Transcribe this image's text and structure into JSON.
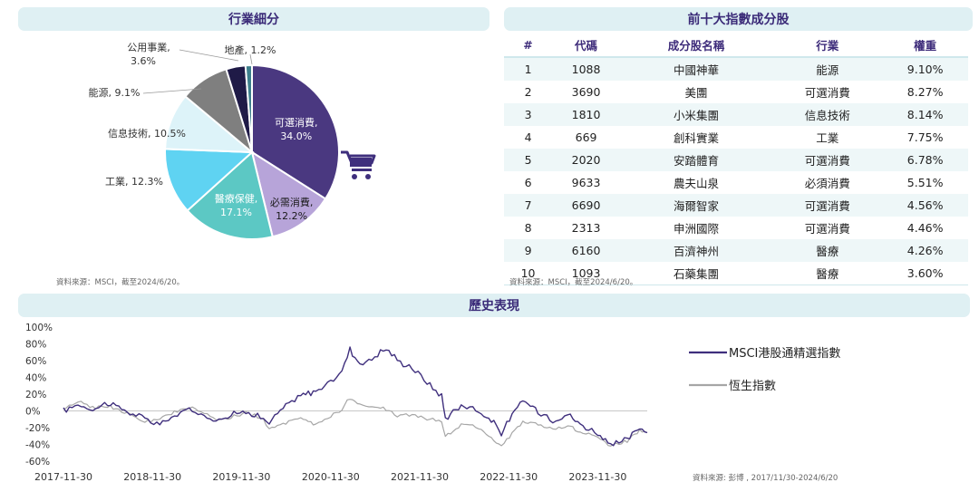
{
  "panels": {
    "industry_title": "行業細分",
    "top10_title": "前十大指數成分股",
    "history_title": "歷史表現",
    "industry_source": "資料來源：MSCI，截至2024/6/20。",
    "top10_source": "資料來源：MSCI，截至2024/6/20。",
    "history_source": "資料來源: 彭博 , 2017/11/30-2024/6/20"
  },
  "chart_data": [
    {
      "type": "pie",
      "title": "行業細分",
      "slices": [
        {
          "label": "可選消費",
          "value": 34.0,
          "text": "34.0%",
          "color": "#4a3880"
        },
        {
          "label": "必需消費",
          "value": 12.2,
          "text": "12.2%",
          "color": "#b7a4d9"
        },
        {
          "label": "醫療保健",
          "value": 17.1,
          "text": "17.1%",
          "color": "#5cc8c4"
        },
        {
          "label": "工業",
          "value": 12.3,
          "text": "12.3%",
          "color": "#5fd3f2"
        },
        {
          "label": "信息技術",
          "value": 10.5,
          "text": "10.5%",
          "color": "#ddf3f9"
        },
        {
          "label": "能源",
          "value": 9.1,
          "text": "9.1%",
          "color": "#7f7f7f"
        },
        {
          "label": "公用事業",
          "value": 3.6,
          "text": "3.6%",
          "color": "#1f1a47"
        },
        {
          "label": "地產",
          "value": 1.2,
          "text": "1.2%",
          "color": "#3d7f8c"
        }
      ]
    },
    {
      "type": "table",
      "title": "前十大指數成分股",
      "columns": [
        "#",
        "代碼",
        "成分股名稱",
        "行業",
        "權重"
      ],
      "rows": [
        [
          "1",
          "1088",
          "中國神華",
          "能源",
          "9.10%"
        ],
        [
          "2",
          "3690",
          "美團",
          "可選消費",
          "8.27%"
        ],
        [
          "3",
          "1810",
          "小米集團",
          "信息技術",
          "8.14%"
        ],
        [
          "4",
          "669",
          "創科實業",
          "工業",
          "7.75%"
        ],
        [
          "5",
          "2020",
          "安踏體育",
          "可選消費",
          "6.78%"
        ],
        [
          "6",
          "9633",
          "農夫山泉",
          "必須消費",
          "5.51%"
        ],
        [
          "7",
          "6690",
          "海爾智家",
          "可選消費",
          "4.56%"
        ],
        [
          "8",
          "2313",
          "申洲國際",
          "可選消費",
          "4.46%"
        ],
        [
          "9",
          "6160",
          "百濟神州",
          "醫療",
          "4.26%"
        ],
        [
          "10",
          "1093",
          "石藥集團",
          "醫療",
          "3.60%"
        ]
      ]
    },
    {
      "type": "line",
      "title": "歷史表現",
      "x_start": "2017-11-30",
      "x_end": "2024-06-20",
      "x_ticks": [
        "2017-11-30",
        "2018-11-30",
        "2019-11-30",
        "2020-11-30",
        "2021-11-30",
        "2022-11-30",
        "2023-11-30"
      ],
      "y_ticks": [
        "100%",
        "80%",
        "60%",
        "40%",
        "20%",
        "0%",
        "-20%",
        "-40%",
        "-60%"
      ],
      "ylim": [
        -60,
        100
      ],
      "series": [
        {
          "name": "MSCI港股通精選指數",
          "color": "#3f2f7d",
          "points": [
            [
              "2017-11-30",
              0
            ],
            [
              "2018-01-29",
              8
            ],
            [
              "2018-03-30",
              2
            ],
            [
              "2018-05-30",
              10
            ],
            [
              "2018-08-30",
              -2
            ],
            [
              "2018-10-30",
              -10
            ],
            [
              "2018-12-30",
              -16
            ],
            [
              "2019-02-28",
              -6
            ],
            [
              "2019-04-30",
              2
            ],
            [
              "2019-06-30",
              -6
            ],
            [
              "2019-08-30",
              -10
            ],
            [
              "2019-10-30",
              -4
            ],
            [
              "2019-12-30",
              0
            ],
            [
              "2020-02-28",
              -10
            ],
            [
              "2020-03-23",
              -14
            ],
            [
              "2020-05-30",
              6
            ],
            [
              "2020-07-30",
              18
            ],
            [
              "2020-09-30",
              24
            ],
            [
              "2020-11-30",
              34
            ],
            [
              "2021-01-15",
              48
            ],
            [
              "2021-02-17",
              74
            ],
            [
              "2021-03-30",
              56
            ],
            [
              "2021-05-30",
              64
            ],
            [
              "2021-07-15",
              75
            ],
            [
              "2021-08-30",
              60
            ],
            [
              "2021-10-30",
              52
            ],
            [
              "2021-12-30",
              34
            ],
            [
              "2022-02-28",
              18
            ],
            [
              "2022-03-15",
              -8
            ],
            [
              "2022-05-30",
              8
            ],
            [
              "2022-07-30",
              0
            ],
            [
              "2022-09-30",
              -14
            ],
            [
              "2022-10-31",
              -26
            ],
            [
              "2023-01-27",
              13
            ],
            [
              "2023-03-30",
              0
            ],
            [
              "2023-05-30",
              -10
            ],
            [
              "2023-07-30",
              -4
            ],
            [
              "2023-09-30",
              -18
            ],
            [
              "2023-11-30",
              -26
            ],
            [
              "2024-01-22",
              -42
            ],
            [
              "2024-03-30",
              -34
            ],
            [
              "2024-05-20",
              -20
            ],
            [
              "2024-06-20",
              -26
            ]
          ]
        },
        {
          "name": "恆生指數",
          "color": "#a6a6a6",
          "points": [
            [
              "2017-11-30",
              0
            ],
            [
              "2018-01-29",
              12
            ],
            [
              "2018-03-30",
              4
            ],
            [
              "2018-05-30",
              6
            ],
            [
              "2018-08-30",
              -4
            ],
            [
              "2018-10-30",
              -14
            ],
            [
              "2018-12-30",
              -10
            ],
            [
              "2019-02-28",
              -2
            ],
            [
              "2019-04-30",
              4
            ],
            [
              "2019-06-30",
              -2
            ],
            [
              "2019-08-30",
              -12
            ],
            [
              "2019-10-30",
              -6
            ],
            [
              "2019-12-30",
              -3
            ],
            [
              "2020-02-28",
              -10
            ],
            [
              "2020-03-23",
              -22
            ],
            [
              "2020-05-30",
              -14
            ],
            [
              "2020-07-30",
              -10
            ],
            [
              "2020-09-30",
              -16
            ],
            [
              "2020-11-30",
              -6
            ],
            [
              "2021-01-15",
              2
            ],
            [
              "2021-02-17",
              16
            ],
            [
              "2021-03-30",
              6
            ],
            [
              "2021-05-30",
              4
            ],
            [
              "2021-07-15",
              2
            ],
            [
              "2021-08-30",
              -6
            ],
            [
              "2021-10-30",
              -4
            ],
            [
              "2021-12-30",
              -10
            ],
            [
              "2022-02-28",
              -12
            ],
            [
              "2022-03-15",
              -30
            ],
            [
              "2022-05-30",
              -16
            ],
            [
              "2022-07-30",
              -20
            ],
            [
              "2022-09-30",
              -34
            ],
            [
              "2022-10-31",
              -42
            ],
            [
              "2023-01-27",
              -12
            ],
            [
              "2023-03-30",
              -16
            ],
            [
              "2023-05-30",
              -22
            ],
            [
              "2023-07-30",
              -18
            ],
            [
              "2023-09-30",
              -26
            ],
            [
              "2023-11-30",
              -32
            ],
            [
              "2024-01-22",
              -42
            ],
            [
              "2024-03-30",
              -36
            ],
            [
              "2024-05-20",
              -22
            ],
            [
              "2024-06-20",
              -26
            ]
          ]
        }
      ]
    }
  ]
}
